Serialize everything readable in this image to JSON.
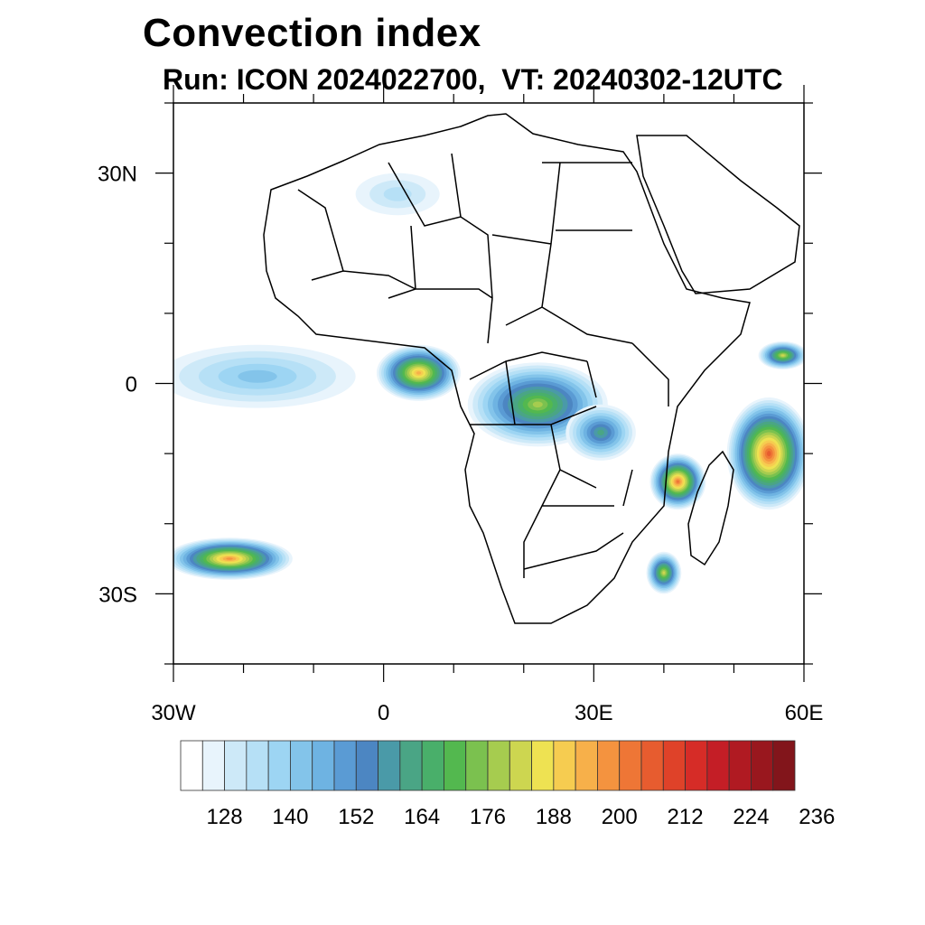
{
  "title": "Convection index",
  "subtitle": "Run: ICON 2024022700,  VT: 20240302-12UTC",
  "map": {
    "region": "Africa",
    "projection": "cylindrical-equidistant",
    "lon_range": [
      -30,
      60
    ],
    "lat_range": [
      -40,
      40
    ],
    "lat_tick_labels": [
      {
        "lat": 30,
        "label": "30N"
      },
      {
        "lat": 0,
        "label": "0"
      },
      {
        "lat": -30,
        "label": "30S"
      }
    ],
    "lon_tick_labels": [
      {
        "lon": -30,
        "label": "30W"
      },
      {
        "lon": 0,
        "label": "0"
      },
      {
        "lon": 30,
        "label": "30E"
      },
      {
        "lon": 60,
        "label": "60E"
      }
    ],
    "field_regions": [
      {
        "name": "equatorial-atlantic-band",
        "lon": -18,
        "lat": 1,
        "rlon": 14,
        "rlat": 4.5,
        "level": 5
      },
      {
        "name": "gulf-of-guinea-cluster",
        "lon": 5,
        "lat": 1.5,
        "rlon": 6,
        "rlat": 4,
        "level": 18
      },
      {
        "name": "congo-basin-cluster",
        "lon": 22,
        "lat": -3,
        "rlon": 10,
        "rlat": 6,
        "level": 14
      },
      {
        "name": "east-africa-lakes",
        "lon": 31,
        "lat": -7,
        "rlon": 5,
        "rlat": 4,
        "level": 10
      },
      {
        "name": "mozambique-channel",
        "lon": 42,
        "lat": -14,
        "rlon": 4,
        "rlat": 4,
        "level": 20
      },
      {
        "name": "southwest-indian-ocean",
        "lon": 55,
        "lat": -10,
        "rlon": 6,
        "rlat": 8,
        "level": 21
      },
      {
        "name": "south-atlantic-band",
        "lon": -22,
        "lat": -25,
        "rlon": 9,
        "rlat": 3,
        "level": 19
      },
      {
        "name": "sahara-cirrus",
        "lon": 2,
        "lat": 27,
        "rlon": 6,
        "rlat": 3,
        "level": 3
      },
      {
        "name": "southeast-africa-coast",
        "lon": 40,
        "lat": -27,
        "rlon": 2.5,
        "rlat": 3,
        "level": 15
      },
      {
        "name": "arabian-sea",
        "lon": 57,
        "lat": 4,
        "rlon": 3.5,
        "rlat": 2,
        "level": 15
      }
    ]
  },
  "colorbar": {
    "colors": [
      "#ffffff",
      "#e8f4fc",
      "#cde9f8",
      "#b6e0f6",
      "#9dd5f3",
      "#83c4ea",
      "#6eb3e2",
      "#5a9bd4",
      "#4c86c2",
      "#4a9aa8",
      "#4aa585",
      "#49af6a",
      "#53b84f",
      "#7bc14f",
      "#a6cc4f",
      "#cdd650",
      "#eee252",
      "#f6cc50",
      "#f7b04a",
      "#f4933f",
      "#ee7636",
      "#e75c2f",
      "#df4229",
      "#d62c27",
      "#c41e26",
      "#b01a22",
      "#99171e",
      "#82151b"
    ],
    "tick_labels": [
      "128",
      "140",
      "152",
      "164",
      "176",
      "188",
      "200",
      "212",
      "224",
      "236"
    ]
  }
}
